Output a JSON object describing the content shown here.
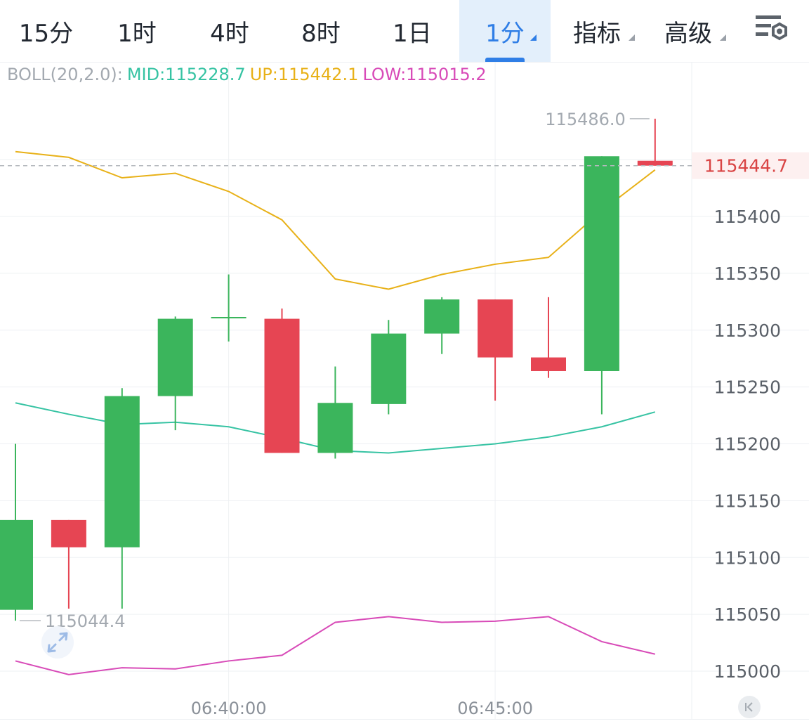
{
  "tabs": [
    {
      "label": "15分",
      "active": false,
      "dropdown": false
    },
    {
      "label": "1时",
      "active": false,
      "dropdown": false
    },
    {
      "label": "4时",
      "active": false,
      "dropdown": false
    },
    {
      "label": "8时",
      "active": false,
      "dropdown": false
    },
    {
      "label": "1日",
      "active": false,
      "dropdown": false
    },
    {
      "label": "1分",
      "active": true,
      "dropdown": true
    },
    {
      "label": "指标",
      "active": false,
      "dropdown": true
    },
    {
      "label": "高级",
      "active": false,
      "dropdown": true
    }
  ],
  "settings_icon": "chart-settings-icon",
  "indicator": {
    "name": "BOLL(20,2.0):",
    "mid": "MID:115228.7",
    "up": "UP:115442.1",
    "low": "LOW:115015.2"
  },
  "colors": {
    "rise": "#3bb55c",
    "fall": "#e64553",
    "mid": "#36c3a3",
    "up": "#e8b118",
    "low": "#d84bb8",
    "active_tab": "#2f7ee6",
    "current_price": "#d94444"
  },
  "chart_data": {
    "type": "candlestick",
    "ylim": [
      114970,
      115540
    ],
    "y_ticks": [
      "115400",
      "115350",
      "115300",
      "115250",
      "115200",
      "115150",
      "115100",
      "115050",
      "115000"
    ],
    "x_ticks": [
      {
        "label": "06:40:00",
        "index": 4
      },
      {
        "label": "06:45:00",
        "index": 9
      }
    ],
    "candles": [
      {
        "open": 115054,
        "close": 115133,
        "high": 115200,
        "low": 115044.4
      },
      {
        "open": 115133,
        "close": 115109,
        "high": 115133,
        "low": 115055
      },
      {
        "open": 115109,
        "close": 115242,
        "high": 115249,
        "low": 115055
      },
      {
        "open": 115242,
        "close": 115310,
        "high": 115312,
        "low": 115212
      },
      {
        "open": 115311,
        "close": 115311,
        "high": 115349,
        "low": 115290
      },
      {
        "open": 115310,
        "close": 115192,
        "high": 115319,
        "low": 115192
      },
      {
        "open": 115192,
        "close": 115236,
        "high": 115268,
        "low": 115187
      },
      {
        "open": 115235,
        "close": 115297,
        "high": 115309,
        "low": 115226
      },
      {
        "open": 115297,
        "close": 115327,
        "high": 115329,
        "low": 115279
      },
      {
        "open": 115327,
        "close": 115276,
        "high": 115327,
        "low": 115238
      },
      {
        "open": 115276,
        "close": 115264,
        "high": 115329,
        "low": 115258
      },
      {
        "open": 115264,
        "close": 115453,
        "high": 115453,
        "low": 115226
      },
      {
        "open": 115449,
        "close": 115444.7,
        "high": 115486.0,
        "low": 115444.7
      }
    ],
    "boll": {
      "up": [
        115457,
        115452,
        115434,
        115438,
        115422,
        115397,
        115345,
        115336,
        115349,
        115358,
        115364,
        115405,
        115441
      ],
      "mid": [
        115236,
        115226,
        115217,
        115219,
        115215,
        115205,
        115194,
        115192,
        115196,
        115200,
        115206,
        115215,
        115228
      ],
      "low": [
        115009,
        114997,
        115003,
        115002,
        115009,
        115014,
        115043,
        115048,
        115043,
        115044,
        115048,
        115026,
        115015
      ]
    },
    "current_price": "115444.7",
    "high_marker": "115486.0",
    "low_marker": "115044.4"
  }
}
